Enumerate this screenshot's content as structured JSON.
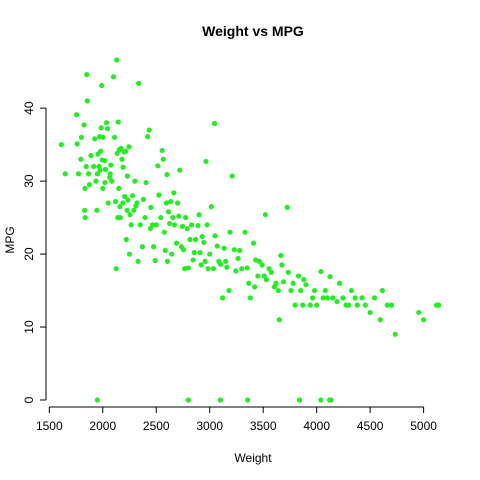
{
  "chart_data": {
    "type": "scatter",
    "title": "Weight vs MPG",
    "xlabel": "Weight",
    "ylabel": "MPG",
    "xlim": [
      1600,
      5200
    ],
    "ylim": [
      0,
      46.6
    ],
    "xticks": [
      1500,
      2000,
      2500,
      3000,
      3500,
      4000,
      4500,
      5000
    ],
    "yticks": [
      0,
      10,
      20,
      30,
      40
    ],
    "grid": false,
    "legend": "none",
    "point_color": "#22ee22",
    "points": [
      [
        1613,
        35
      ],
      [
        1649,
        31
      ],
      [
        1755,
        39.1
      ],
      [
        1760,
        35.1
      ],
      [
        1773,
        31
      ],
      [
        1795,
        33
      ],
      [
        1800,
        36
      ],
      [
        1825,
        37.7
      ],
      [
        1830,
        26
      ],
      [
        1834,
        29
      ],
      [
        1835,
        25
      ],
      [
        1845,
        32
      ],
      [
        1850,
        44.6
      ],
      [
        1855,
        41
      ],
      [
        1867,
        31
      ],
      [
        1875,
        29.5
      ],
      [
        1890,
        33.5
      ],
      [
        1915,
        32
      ],
      [
        1925,
        35.8
      ],
      [
        1937,
        30
      ],
      [
        1945,
        26
      ],
      [
        1950,
        31
      ],
      [
        1955,
        33.7
      ],
      [
        1965,
        32
      ],
      [
        1970,
        36.1
      ],
      [
        1975,
        31.5
      ],
      [
        1980,
        34.1
      ],
      [
        1985,
        37.3
      ],
      [
        1990,
        43.1
      ],
      [
        1995,
        32.9
      ],
      [
        2000,
        29
      ],
      [
        2003,
        36
      ],
      [
        2019,
        32.8
      ],
      [
        2020,
        29.8
      ],
      [
        2025,
        31.6
      ],
      [
        2035,
        38
      ],
      [
        2045,
        37.2
      ],
      [
        2050,
        27
      ],
      [
        2065,
        30.5
      ],
      [
        2070,
        31
      ],
      [
        2075,
        32.2
      ],
      [
        2085,
        30
      ],
      [
        2100,
        44.3
      ],
      [
        2110,
        36
      ],
      [
        2120,
        27.2
      ],
      [
        2125,
        18
      ],
      [
        2130,
        46.6
      ],
      [
        2135,
        33.8
      ],
      [
        2140,
        25
      ],
      [
        2145,
        38.1
      ],
      [
        2150,
        29
      ],
      [
        2155,
        34.3
      ],
      [
        2160,
        26.5
      ],
      [
        2164,
        25
      ],
      [
        2171,
        34.5
      ],
      [
        2180,
        33
      ],
      [
        2188,
        27
      ],
      [
        2190,
        31.9
      ],
      [
        2200,
        34
      ],
      [
        2205,
        27.9
      ],
      [
        2215,
        34.1
      ],
      [
        2220,
        22
      ],
      [
        2228,
        26
      ],
      [
        2230,
        30.7
      ],
      [
        2234,
        27.4
      ],
      [
        2245,
        34.7
      ],
      [
        2250,
        20
      ],
      [
        2255,
        25.4
      ],
      [
        2265,
        24
      ],
      [
        2278,
        28
      ],
      [
        2290,
        26
      ],
      [
        2300,
        30
      ],
      [
        2310,
        26.6
      ],
      [
        2320,
        27
      ],
      [
        2330,
        19
      ],
      [
        2335,
        43.4
      ],
      [
        2350,
        24
      ],
      [
        2370,
        21
      ],
      [
        2380,
        27.5
      ],
      [
        2395,
        25
      ],
      [
        2405,
        29.8
      ],
      [
        2420,
        36.1
      ],
      [
        2434,
        37
      ],
      [
        2445,
        23.5
      ],
      [
        2450,
        26.4
      ],
      [
        2465,
        24
      ],
      [
        2475,
        21
      ],
      [
        2490,
        19.1
      ],
      [
        2500,
        24
      ],
      [
        2515,
        32.1
      ],
      [
        2525,
        28.1
      ],
      [
        2542,
        25
      ],
      [
        2556,
        34.2
      ],
      [
        2565,
        33
      ],
      [
        2575,
        23
      ],
      [
        2585,
        20.5
      ],
      [
        2595,
        27
      ],
      [
        2600,
        30.9
      ],
      [
        2605,
        19
      ],
      [
        2615,
        25.8
      ],
      [
        2625,
        24.2
      ],
      [
        2635,
        27.2
      ],
      [
        2645,
        20
      ],
      [
        2655,
        25
      ],
      [
        2665,
        28.4
      ],
      [
        2670,
        24
      ],
      [
        2690,
        21.5
      ],
      [
        2700,
        27
      ],
      [
        2711,
        25.2
      ],
      [
        2720,
        31.5
      ],
      [
        2735,
        21
      ],
      [
        2745,
        23.8
      ],
      [
        2755,
        20.6
      ],
      [
        2765,
        18
      ],
      [
        2775,
        25
      ],
      [
        2790,
        23.5
      ],
      [
        2800,
        18.1
      ],
      [
        2815,
        22
      ],
      [
        2830,
        24
      ],
      [
        2845,
        19.2
      ],
      [
        2855,
        20.2
      ],
      [
        2868,
        22
      ],
      [
        2890,
        23.9
      ],
      [
        2900,
        25.4
      ],
      [
        2910,
        20.2
      ],
      [
        2920,
        18.5
      ],
      [
        2930,
        22.4
      ],
      [
        2945,
        21.6
      ],
      [
        2957,
        19
      ],
      [
        2965,
        32.7
      ],
      [
        2975,
        24
      ],
      [
        2985,
        18
      ],
      [
        3000,
        20
      ],
      [
        3015,
        26.5
      ],
      [
        3035,
        18
      ],
      [
        3045,
        37.9
      ],
      [
        3050,
        22.5
      ],
      [
        3070,
        21.1
      ],
      [
        3085,
        19
      ],
      [
        3102,
        18.6
      ],
      [
        3120,
        14
      ],
      [
        3135,
        20.8
      ],
      [
        3150,
        19
      ],
      [
        3160,
        18.2
      ],
      [
        3180,
        15
      ],
      [
        3190,
        23
      ],
      [
        3210,
        30.7
      ],
      [
        3230,
        20.6
      ],
      [
        3245,
        17.7
      ],
      [
        3265,
        19.4
      ],
      [
        3280,
        20.5
      ],
      [
        3300,
        18
      ],
      [
        3330,
        23
      ],
      [
        3350,
        18.1
      ],
      [
        3365,
        16
      ],
      [
        3380,
        14
      ],
      [
        3410,
        21.5
      ],
      [
        3420,
        15.5
      ],
      [
        3430,
        19.2
      ],
      [
        3450,
        17
      ],
      [
        3465,
        19
      ],
      [
        3490,
        18.5
      ],
      [
        3510,
        17
      ],
      [
        3520,
        25.4
      ],
      [
        3530,
        16.5
      ],
      [
        3555,
        18
      ],
      [
        3575,
        17.5
      ],
      [
        3605,
        15.5
      ],
      [
        3620,
        16
      ],
      [
        3642,
        15
      ],
      [
        3650,
        11
      ],
      [
        3665,
        19.8
      ],
      [
        3675,
        18.5
      ],
      [
        3690,
        16.2
      ],
      [
        3725,
        26.4
      ],
      [
        3735,
        17.5
      ],
      [
        3760,
        15
      ],
      [
        3780,
        16
      ],
      [
        3799,
        13
      ],
      [
        3830,
        17
      ],
      [
        3850,
        15
      ],
      [
        3870,
        13
      ],
      [
        3880,
        16.5
      ],
      [
        3900,
        15.8
      ],
      [
        3940,
        13
      ],
      [
        3962,
        14
      ],
      [
        3980,
        15
      ],
      [
        4000,
        13
      ],
      [
        4040,
        17.6
      ],
      [
        4060,
        14
      ],
      [
        4080,
        15
      ],
      [
        4100,
        14
      ],
      [
        4125,
        16.9
      ],
      [
        4150,
        14
      ],
      [
        4190,
        13.5
      ],
      [
        4215,
        16
      ],
      [
        4245,
        14
      ],
      [
        4275,
        13
      ],
      [
        4300,
        13
      ],
      [
        4325,
        15
      ],
      [
        4360,
        14
      ],
      [
        4380,
        13
      ],
      [
        4425,
        14
      ],
      [
        4455,
        13
      ],
      [
        4500,
        12
      ],
      [
        4541,
        14
      ],
      [
        4595,
        11
      ],
      [
        4615,
        15
      ],
      [
        4660,
        13
      ],
      [
        4700,
        13
      ],
      [
        4735,
        9
      ],
      [
        4955,
        12
      ],
      [
        5000,
        11
      ],
      [
        5120,
        13
      ],
      [
        5140,
        13
      ],
      [
        1950,
        0
      ],
      [
        2800,
        0
      ],
      [
        3100,
        0
      ],
      [
        3355,
        0
      ],
      [
        3840,
        0
      ],
      [
        4040,
        0
      ],
      [
        4120,
        0
      ],
      [
        4135,
        0
      ]
    ]
  }
}
